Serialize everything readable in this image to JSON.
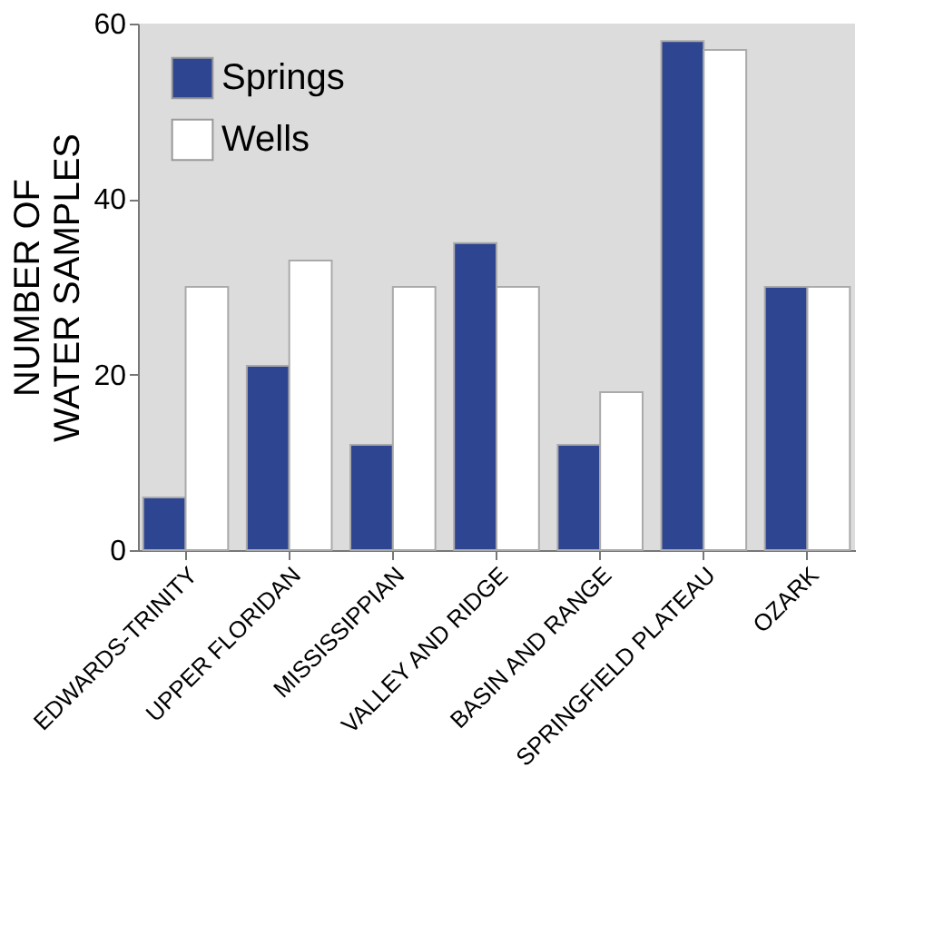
{
  "chart_data": {
    "type": "bar",
    "ylabel": "NUMBER OF\nWATER SAMPLES",
    "categories": [
      "EDWARDS-TRINITY",
      "UPPER FLORIDAN",
      "MISSISSIPPIAN",
      "VALLEY AND RIDGE",
      "BASIN AND RANGE",
      "SPRINGFIELD PLATEAU",
      "OZARK"
    ],
    "series": [
      {
        "name": "Springs",
        "color": "#2e4591",
        "values": [
          6,
          21,
          12,
          35,
          12,
          58,
          30
        ]
      },
      {
        "name": "Wells",
        "color": "#ffffff",
        "values": [
          30,
          33,
          30,
          30,
          18,
          57,
          30
        ]
      }
    ],
    "ylim": [
      0,
      60
    ],
    "yticks": [
      0,
      20,
      40,
      60
    ],
    "grid": false,
    "legend": "top left"
  }
}
